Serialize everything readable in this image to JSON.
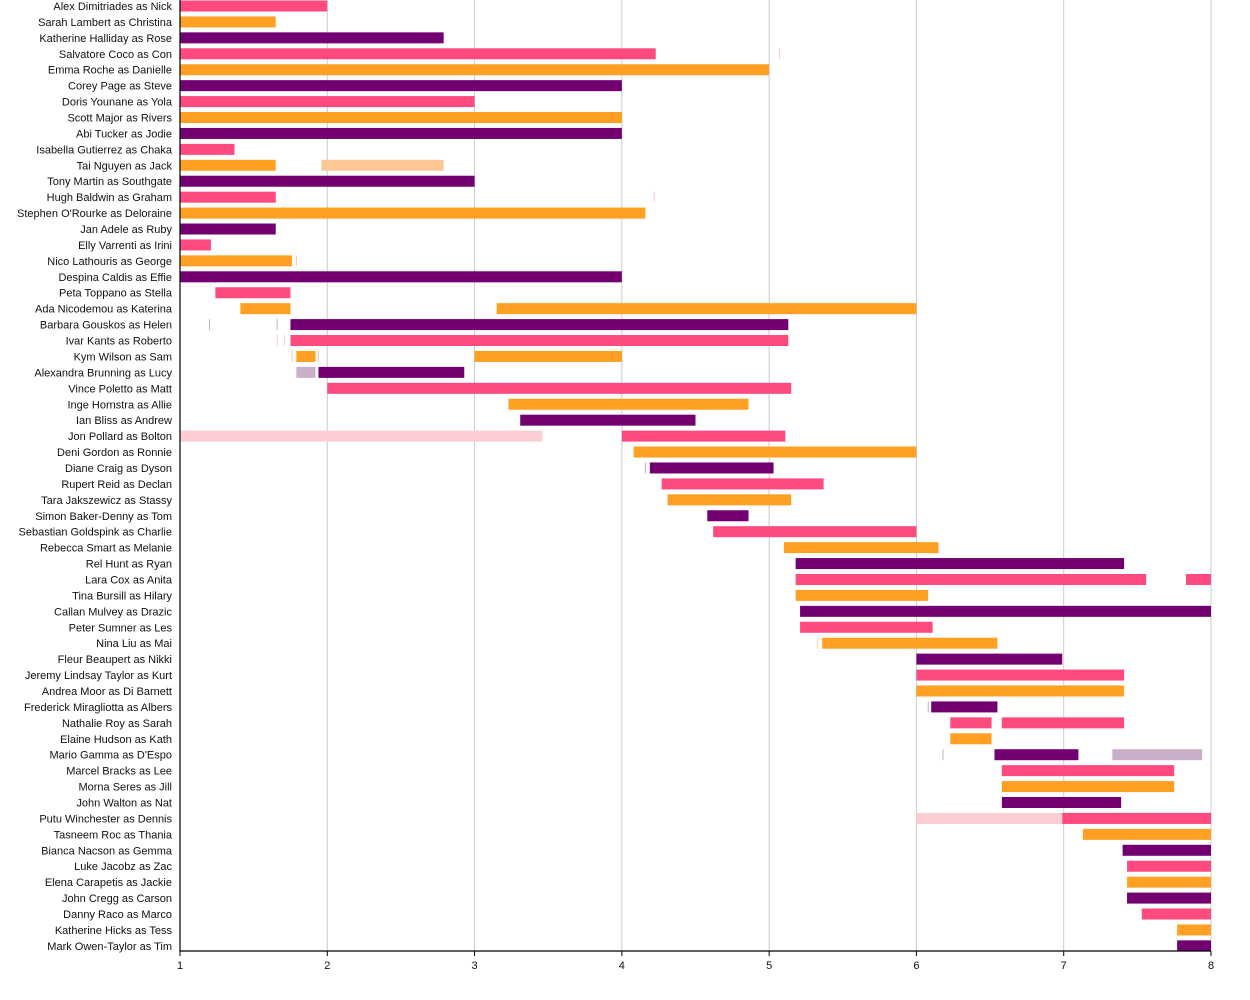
{
  "chart_data": {
    "type": "bar",
    "orientation": "horizontal-timeline",
    "title": "",
    "xlabel": "",
    "ylabel": "",
    "xlim": [
      1,
      8
    ],
    "xticks": [
      1,
      2,
      3,
      4,
      5,
      6,
      7,
      8
    ],
    "grid": true,
    "legend": "none",
    "colors": {
      "pink": {
        "main": "#ff4a80",
        "faded": "#fccdd2"
      },
      "orange": {
        "main": "#ffa024",
        "faded": "#fdc896"
      },
      "purple": {
        "main": "#720070",
        "faded": "#c8b0c8"
      }
    },
    "rows": [
      {
        "label": "Alex Dimitriades as Nick",
        "color": "pink",
        "segments": [
          [
            1,
            2.0,
            "main"
          ]
        ]
      },
      {
        "label": "Sarah Lambert as Christina",
        "color": "orange",
        "segments": [
          [
            1,
            1.65,
            "main"
          ]
        ]
      },
      {
        "label": "Katherine Halliday as Rose",
        "color": "purple",
        "segments": [
          [
            1,
            2.79,
            "main"
          ]
        ]
      },
      {
        "label": "Salvatore Coco as Con",
        "color": "pink",
        "segments": [
          [
            1,
            4.23,
            "main"
          ],
          [
            5.07,
            5.07,
            "tick"
          ]
        ]
      },
      {
        "label": "Emma Roche as Danielle",
        "color": "orange",
        "segments": [
          [
            1,
            5.0,
            "main"
          ]
        ]
      },
      {
        "label": "Corey Page as Steve",
        "color": "purple",
        "segments": [
          [
            1,
            4.0,
            "main"
          ]
        ]
      },
      {
        "label": "Doris Younane as Yola",
        "color": "pink",
        "segments": [
          [
            1,
            3.0,
            "main"
          ]
        ]
      },
      {
        "label": "Scott Major as Rivers",
        "color": "orange",
        "segments": [
          [
            1,
            4.0,
            "main"
          ]
        ]
      },
      {
        "label": "Abi Tucker as Jodie",
        "color": "purple",
        "segments": [
          [
            1,
            4.0,
            "main"
          ]
        ]
      },
      {
        "label": "Isabella Gutierrez as Chaka",
        "color": "pink",
        "segments": [
          [
            1,
            1.37,
            "main"
          ]
        ]
      },
      {
        "label": "Tai Nguyen as Jack",
        "color": "orange",
        "segments": [
          [
            1,
            1.65,
            "main"
          ],
          [
            1.96,
            2.79,
            "faded"
          ]
        ]
      },
      {
        "label": "Tony Martin as Southgate",
        "color": "purple",
        "segments": [
          [
            1,
            3.0,
            "main"
          ]
        ]
      },
      {
        "label": "Hugh Baldwin as Graham",
        "color": "pink",
        "segments": [
          [
            1,
            1.65,
            "main"
          ],
          [
            4.22,
            4.22,
            "tick"
          ]
        ]
      },
      {
        "label": "Stephen O'Rourke as Deloraine",
        "color": "orange",
        "segments": [
          [
            1,
            4.16,
            "main"
          ]
        ]
      },
      {
        "label": "Jan Adele as Ruby",
        "color": "purple",
        "segments": [
          [
            1,
            1.65,
            "main"
          ]
        ]
      },
      {
        "label": "Elly Varrenti as Irini",
        "color": "pink",
        "segments": [
          [
            1,
            1.21,
            "main"
          ]
        ]
      },
      {
        "label": "Nico Lathouris as George",
        "color": "orange",
        "segments": [
          [
            1,
            1.76,
            "main"
          ],
          [
            1.79,
            1.79,
            "tick"
          ]
        ]
      },
      {
        "label": "Despina Caldis as Effie",
        "color": "purple",
        "segments": [
          [
            1,
            4.0,
            "main"
          ]
        ]
      },
      {
        "label": "Peta Toppano as Stella",
        "color": "pink",
        "segments": [
          [
            1.24,
            1.75,
            "main"
          ]
        ]
      },
      {
        "label": "Ada Nicodemou as Katerina",
        "color": "orange",
        "segments": [
          [
            1.41,
            1.75,
            "main"
          ],
          [
            3.15,
            6.0,
            "main"
          ]
        ]
      },
      {
        "label": "Barbara Gouskos as Helen",
        "color": "purple",
        "segments": [
          [
            1.2,
            1.2,
            "tick"
          ],
          [
            1.66,
            1.66,
            "tick"
          ],
          [
            1.75,
            5.13,
            "main"
          ]
        ]
      },
      {
        "label": "Ivar Kants as Roberto",
        "color": "pink",
        "segments": [
          [
            1.66,
            1.66,
            "tick"
          ],
          [
            1.71,
            1.71,
            "tick"
          ],
          [
            1.75,
            5.13,
            "main"
          ]
        ]
      },
      {
        "label": "Kym Wilson as Sam",
        "color": "orange",
        "segments": [
          [
            1.76,
            1.76,
            "tick"
          ],
          [
            1.79,
            1.92,
            "main"
          ],
          [
            1.94,
            1.94,
            "tick"
          ],
          [
            3.0,
            4.0,
            "main"
          ]
        ]
      },
      {
        "label": "Alexandra Brunning as Lucy",
        "color": "purple",
        "segments": [
          [
            1.79,
            1.92,
            "faded"
          ],
          [
            1.94,
            2.93,
            "main"
          ]
        ]
      },
      {
        "label": "Vince Poletto as Matt",
        "color": "pink",
        "segments": [
          [
            2.0,
            5.15,
            "main"
          ]
        ]
      },
      {
        "label": "Inge Hornstra as Allie",
        "color": "orange",
        "segments": [
          [
            3.23,
            4.86,
            "main"
          ]
        ]
      },
      {
        "label": "Ian Bliss as Andrew",
        "color": "purple",
        "segments": [
          [
            3.31,
            4.5,
            "main"
          ]
        ]
      },
      {
        "label": "Jon Pollard as Bolton",
        "color": "pink",
        "segments": [
          [
            1,
            3.46,
            "faded"
          ],
          [
            4.0,
            5.11,
            "main"
          ]
        ]
      },
      {
        "label": "Deni Gordon as Ronnie",
        "color": "orange",
        "segments": [
          [
            4.08,
            6.0,
            "main"
          ]
        ]
      },
      {
        "label": "Diane Craig as Dyson",
        "color": "purple",
        "segments": [
          [
            4.16,
            4.16,
            "tick"
          ],
          [
            4.19,
            5.03,
            "main"
          ]
        ]
      },
      {
        "label": "Rupert Reid as Declan",
        "color": "pink",
        "segments": [
          [
            4.27,
            5.37,
            "main"
          ]
        ]
      },
      {
        "label": "Tara Jakszewicz as Stassy",
        "color": "orange",
        "segments": [
          [
            4.31,
            5.15,
            "main"
          ]
        ]
      },
      {
        "label": "Simon Baker-Denny as Tom",
        "color": "purple",
        "segments": [
          [
            4.58,
            4.86,
            "main"
          ]
        ]
      },
      {
        "label": "Sebastian Goldspink as Charlie",
        "color": "pink",
        "segments": [
          [
            4.62,
            6.0,
            "main"
          ]
        ]
      },
      {
        "label": "Rebecca Smart as Melanie",
        "color": "orange",
        "segments": [
          [
            5.1,
            6.15,
            "main"
          ]
        ]
      },
      {
        "label": "Rel Hunt as Ryan",
        "color": "purple",
        "segments": [
          [
            5.18,
            7.41,
            "main"
          ]
        ]
      },
      {
        "label": "Lara Cox as Anita",
        "color": "pink",
        "segments": [
          [
            5.18,
            7.56,
            "main"
          ],
          [
            7.83,
            8.0,
            "main"
          ]
        ]
      },
      {
        "label": "Tina Bursill as Hilary",
        "color": "orange",
        "segments": [
          [
            5.18,
            6.08,
            "main"
          ]
        ]
      },
      {
        "label": "Callan Mulvey as Drazic",
        "color": "purple",
        "segments": [
          [
            5.21,
            8.0,
            "main"
          ]
        ]
      },
      {
        "label": "Peter Sumner as Les",
        "color": "pink",
        "segments": [
          [
            5.21,
            6.11,
            "main"
          ]
        ]
      },
      {
        "label": "Nina Liu as Mai",
        "color": "orange",
        "segments": [
          [
            5.33,
            5.33,
            "tick"
          ],
          [
            5.36,
            6.55,
            "main"
          ]
        ]
      },
      {
        "label": "Fleur Beaupert as Nikki",
        "color": "purple",
        "segments": [
          [
            6.0,
            6.99,
            "main"
          ]
        ]
      },
      {
        "label": "Jeremy Lindsay Taylor as Kurt",
        "color": "pink",
        "segments": [
          [
            6.0,
            7.41,
            "main"
          ]
        ]
      },
      {
        "label": "Andrea Moor as Di Barnett",
        "color": "orange",
        "segments": [
          [
            6.0,
            7.41,
            "main"
          ]
        ]
      },
      {
        "label": "Frederick Miragliotta as Albers",
        "color": "purple",
        "segments": [
          [
            6.08,
            6.08,
            "tick"
          ],
          [
            6.1,
            6.55,
            "main"
          ]
        ]
      },
      {
        "label": "Nathalie Roy as Sarah",
        "color": "pink",
        "segments": [
          [
            6.23,
            6.51,
            "main"
          ],
          [
            6.58,
            7.41,
            "main"
          ]
        ]
      },
      {
        "label": "Elaine Hudson as Kath",
        "color": "orange",
        "segments": [
          [
            6.23,
            6.51,
            "main"
          ]
        ]
      },
      {
        "label": "Mario Gamma as D'Espo",
        "color": "purple",
        "segments": [
          [
            6.18,
            6.18,
            "tick"
          ],
          [
            6.53,
            7.1,
            "main"
          ],
          [
            7.33,
            7.94,
            "faded"
          ]
        ]
      },
      {
        "label": "Marcel Bracks as Lee",
        "color": "pink",
        "segments": [
          [
            6.58,
            7.75,
            "main"
          ]
        ]
      },
      {
        "label": "Morna Seres as Jill",
        "color": "orange",
        "segments": [
          [
            6.58,
            7.75,
            "main"
          ]
        ]
      },
      {
        "label": "John Walton as Nat",
        "color": "purple",
        "segments": [
          [
            6.58,
            7.39,
            "main"
          ]
        ]
      },
      {
        "label": "Putu Winchester as Dennis",
        "color": "pink",
        "segments": [
          [
            6.0,
            6.99,
            "faded"
          ],
          [
            6.99,
            8.0,
            "main"
          ]
        ]
      },
      {
        "label": "Tasneem Roc as Thania",
        "color": "orange",
        "segments": [
          [
            7.13,
            8.0,
            "main"
          ]
        ]
      },
      {
        "label": "Bianca Nacson as Gemma",
        "color": "purple",
        "segments": [
          [
            7.4,
            8.0,
            "main"
          ]
        ]
      },
      {
        "label": "Luke Jacobz as Zac",
        "color": "pink",
        "segments": [
          [
            7.43,
            8.0,
            "main"
          ]
        ]
      },
      {
        "label": "Elena Carapetis as Jackie",
        "color": "orange",
        "segments": [
          [
            7.43,
            8.0,
            "main"
          ]
        ]
      },
      {
        "label": "John Cregg as Carson",
        "color": "purple",
        "segments": [
          [
            7.43,
            8.0,
            "main"
          ]
        ]
      },
      {
        "label": "Danny Raco as Marco",
        "color": "pink",
        "segments": [
          [
            7.53,
            8.0,
            "main"
          ]
        ]
      },
      {
        "label": "Katherine Hicks as Tess",
        "color": "orange",
        "segments": [
          [
            7.77,
            8.0,
            "main"
          ]
        ]
      },
      {
        "label": "Mark Owen-Taylor as Tim",
        "color": "purple",
        "segments": [
          [
            7.77,
            8.0,
            "main"
          ]
        ]
      }
    ]
  }
}
